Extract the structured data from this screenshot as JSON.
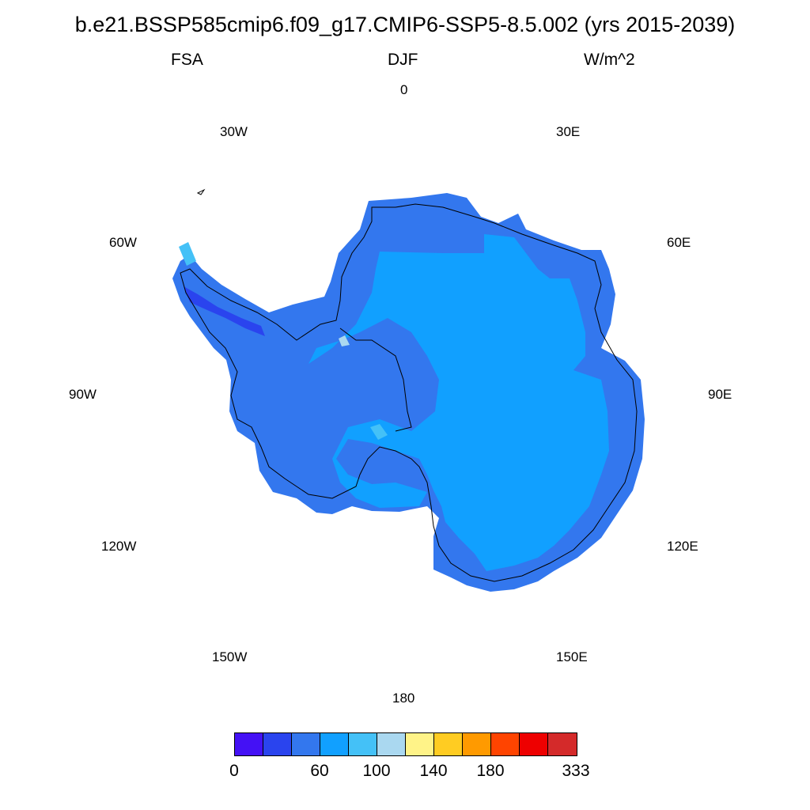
{
  "title": "b.e21.BSSP585cmip6.f09_g17.CMIP6-SSP5-8.5.002 (yrs 2015-2039)",
  "variable": "FSA",
  "season": "DJF",
  "units": "W/m^2",
  "longitude_labels": {
    "lon_0": "0",
    "lon_30e": "30E",
    "lon_60e": "60E",
    "lon_90e": "90E",
    "lon_120e": "120E",
    "lon_150e": "150E",
    "lon_180": "180",
    "lon_150w": "150W",
    "lon_120w": "120W",
    "lon_90w": "90W",
    "lon_60w": "60W",
    "lon_30w": "30W"
  },
  "colorbar": {
    "colors": [
      "#4411f5",
      "#2a44ee",
      "#3377ee",
      "#11a0ff",
      "#44c1f7",
      "#aad8f0",
      "#fff388",
      "#ffcc22",
      "#ff9a00",
      "#ff4400",
      "#ee0000",
      "#d42a2a"
    ],
    "labels": [
      "0",
      "60",
      "100",
      "140",
      "180",
      "333"
    ]
  },
  "map_colors": {
    "ice_interior": "#11a0ff",
    "coastal": "#3377ee",
    "dark_low": "#2a44ee",
    "light": "#44c1f7",
    "coastline": "#000000"
  }
}
